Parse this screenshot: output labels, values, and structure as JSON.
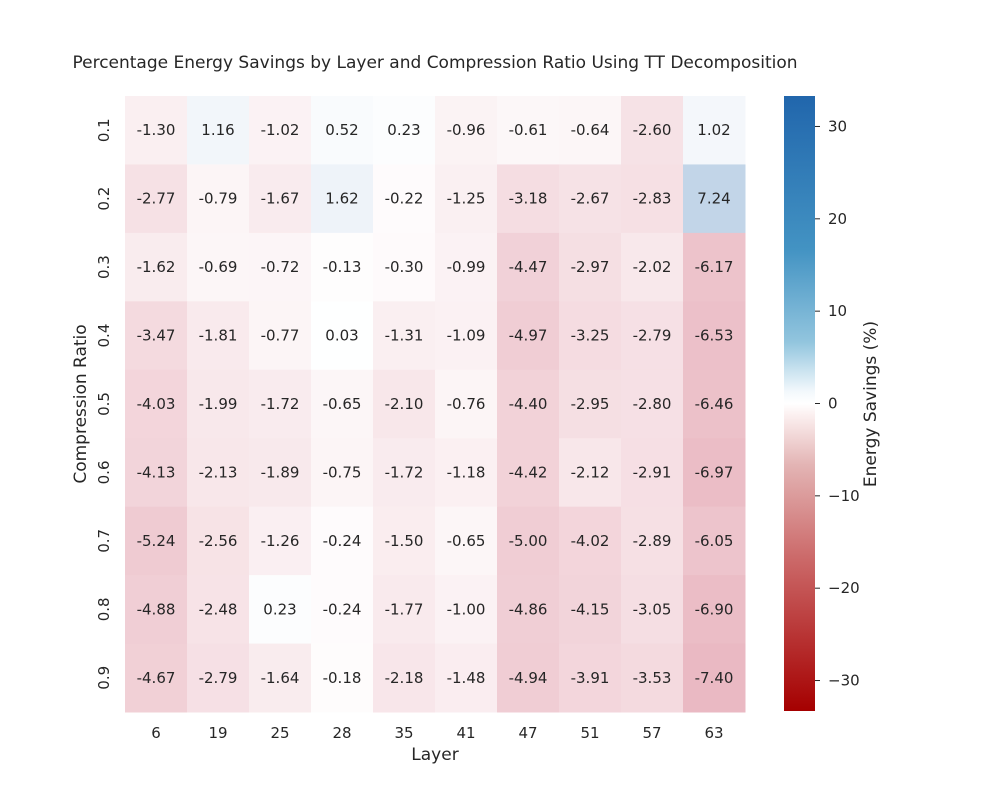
{
  "chart_data": {
    "type": "heatmap",
    "title": "Percentage Energy Savings by Layer and Compression Ratio Using TT Decomposition",
    "xlabel": "Layer",
    "ylabel": "Compression Ratio",
    "x_categories": [
      "6",
      "19",
      "25",
      "28",
      "35",
      "41",
      "47",
      "51",
      "57",
      "63"
    ],
    "y_categories": [
      "0.1",
      "0.2",
      "0.3",
      "0.4",
      "0.5",
      "0.6",
      "0.7",
      "0.8",
      "0.9"
    ],
    "values": [
      [
        -1.3,
        1.16,
        -1.02,
        0.52,
        0.23,
        -0.96,
        -0.61,
        -0.64,
        -2.6,
        1.02
      ],
      [
        -2.77,
        -0.79,
        -1.67,
        1.62,
        -0.22,
        -1.25,
        -3.18,
        -2.67,
        -2.83,
        7.24
      ],
      [
        -1.62,
        -0.69,
        -0.72,
        -0.13,
        -0.3,
        -0.99,
        -4.47,
        -2.97,
        -2.02,
        -6.17
      ],
      [
        -3.47,
        -1.81,
        -0.77,
        0.03,
        -1.31,
        -1.09,
        -4.97,
        -3.25,
        -2.79,
        -6.53
      ],
      [
        -4.03,
        -1.99,
        -1.72,
        -0.65,
        -2.1,
        -0.76,
        -4.4,
        -2.95,
        -2.8,
        -6.46
      ],
      [
        -4.13,
        -2.13,
        -1.89,
        -0.75,
        -1.72,
        -1.18,
        -4.42,
        -2.12,
        -2.91,
        -6.97
      ],
      [
        -5.24,
        -2.56,
        -1.26,
        -0.24,
        -1.5,
        -0.65,
        -5.0,
        -4.02,
        -2.89,
        -6.05
      ],
      [
        -4.88,
        -2.48,
        0.23,
        -0.24,
        -1.77,
        -1.0,
        -4.86,
        -4.15,
        -3.05,
        -6.9
      ],
      [
        -4.67,
        -2.79,
        -1.64,
        -0.18,
        -2.18,
        -1.48,
        -4.94,
        -3.91,
        -3.53,
        -7.4
      ]
    ],
    "colorbar": {
      "label": "Energy Savings (%)",
      "range": [
        -33.3,
        33.3
      ],
      "ticks": [
        30,
        20,
        10,
        0,
        -10,
        -20,
        -30
      ],
      "tick_labels": [
        "30",
        "20",
        "10",
        "0",
        "−10",
        "−20",
        "−30"
      ],
      "colormap": "diverging red-white-blue",
      "negative_color": "#b40426",
      "center_color": "#ffffff",
      "positive_color": "#2166ac"
    },
    "grid": false,
    "legend": "colorbar-right"
  }
}
